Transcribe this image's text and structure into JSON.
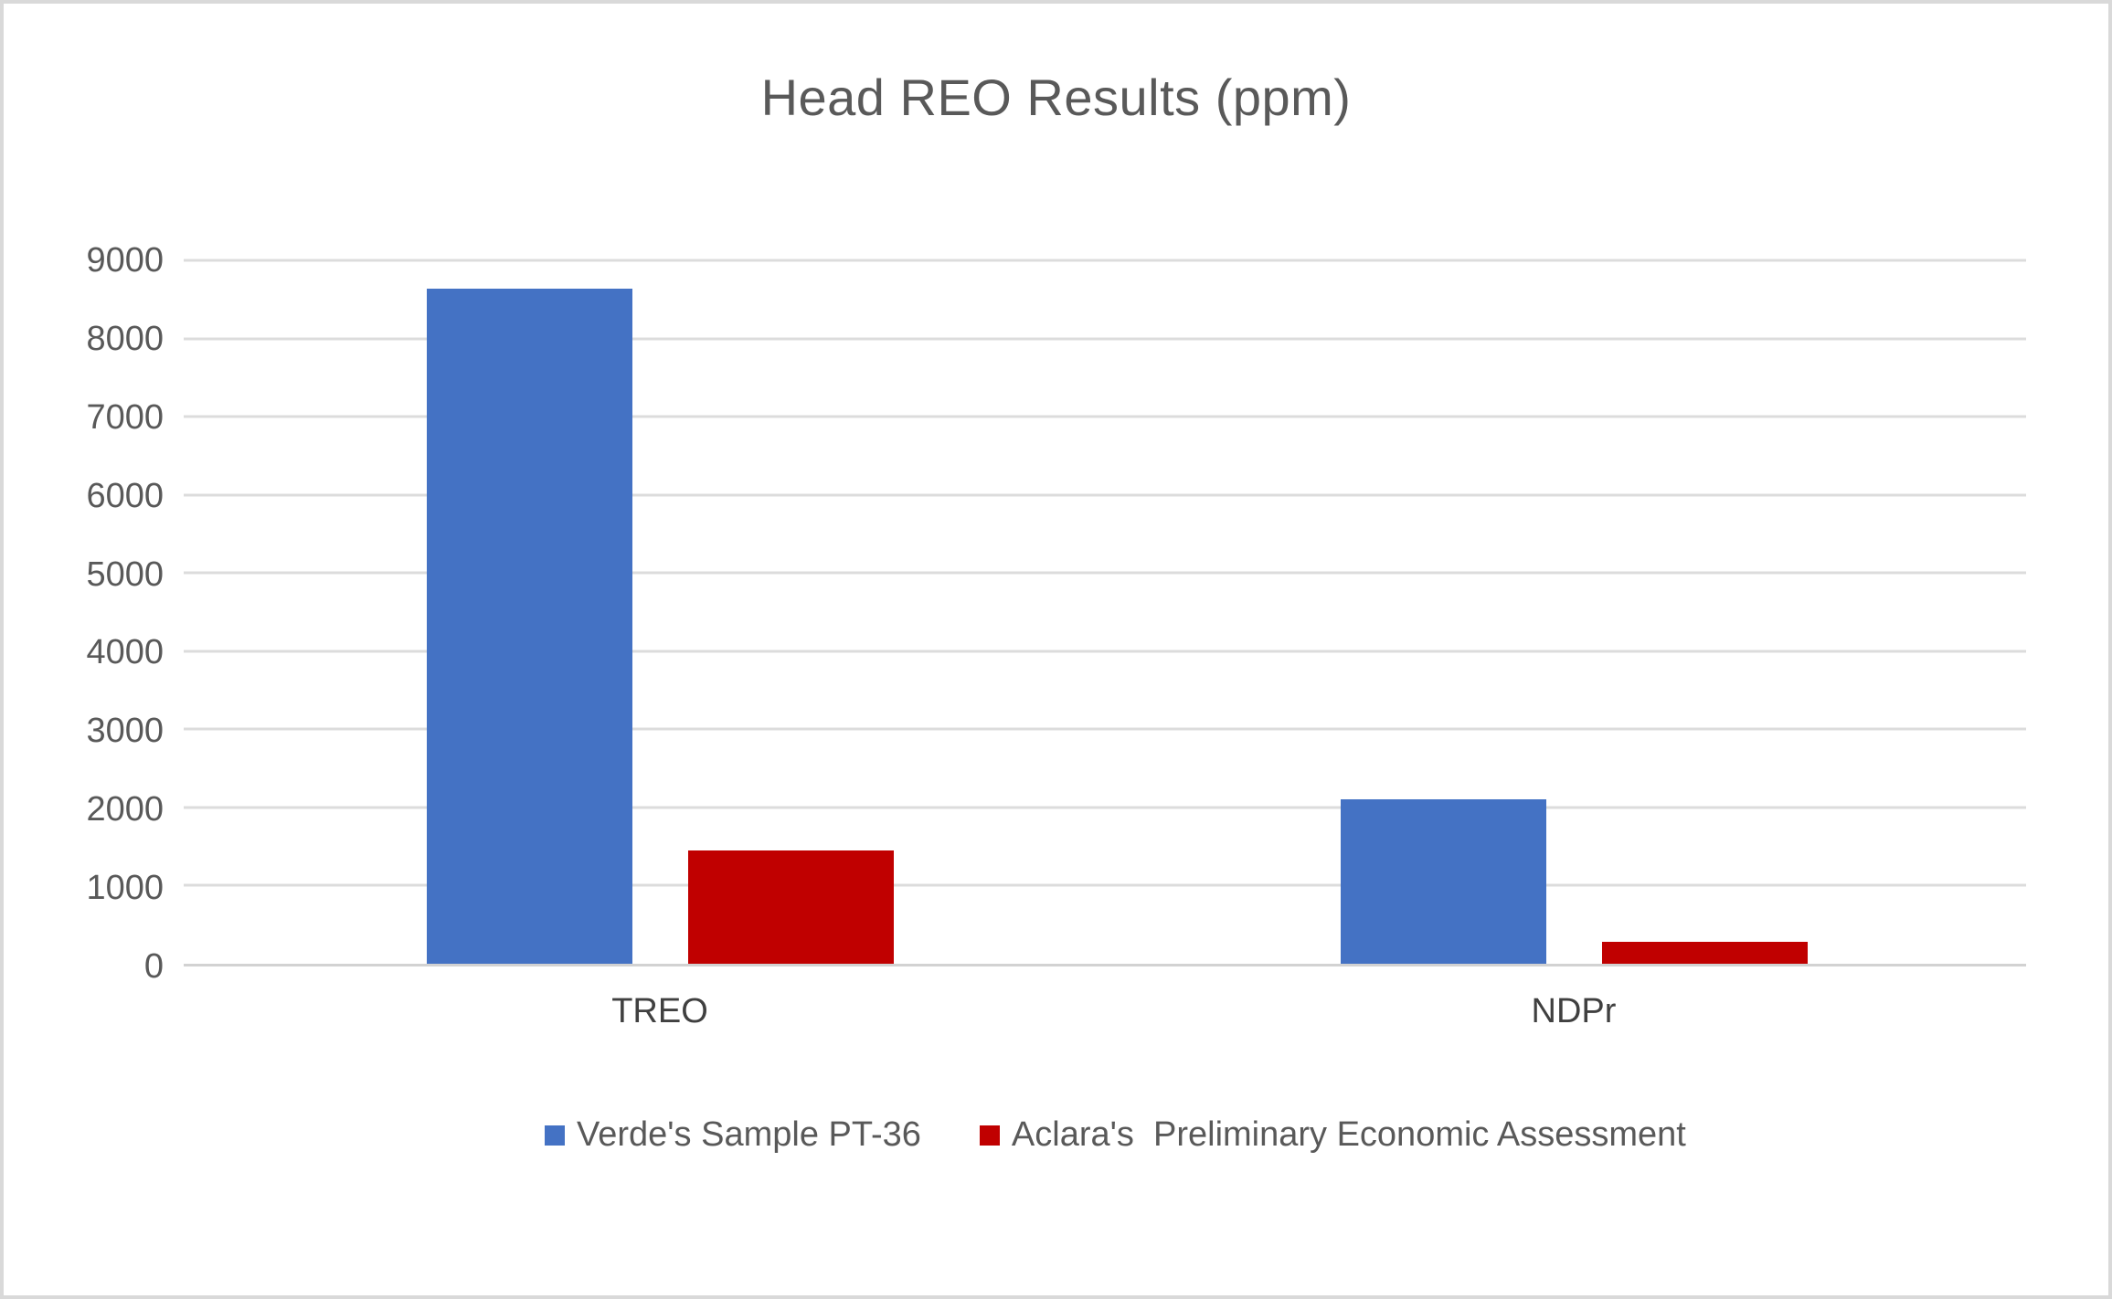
{
  "chart_data": {
    "type": "bar",
    "title": "Head REO Results (ppm)",
    "categories": [
      "TREO",
      "NDPr"
    ],
    "series": [
      {
        "name": "Verde's Sample PT-36",
        "color": "#4472C4",
        "values": [
          8600,
          2100
        ]
      },
      {
        "name": "Aclara's  Preliminary Economic Assessment",
        "color": "#C00000",
        "values": [
          1440,
          280
        ]
      }
    ],
    "xlabel": "",
    "ylabel": "",
    "ylim": [
      0,
      9000
    ],
    "y_ticks": [
      0,
      1000,
      2000,
      3000,
      4000,
      5000,
      6000,
      7000,
      8000,
      9000
    ],
    "grid": true,
    "legend_position": "bottom"
  },
  "colors": {
    "series_blue": "#4472C4",
    "series_red": "#C00000",
    "text_gray": "#595959",
    "gridline_gray": "#DCDCDC",
    "frame_gray": "#D9D9D9"
  }
}
